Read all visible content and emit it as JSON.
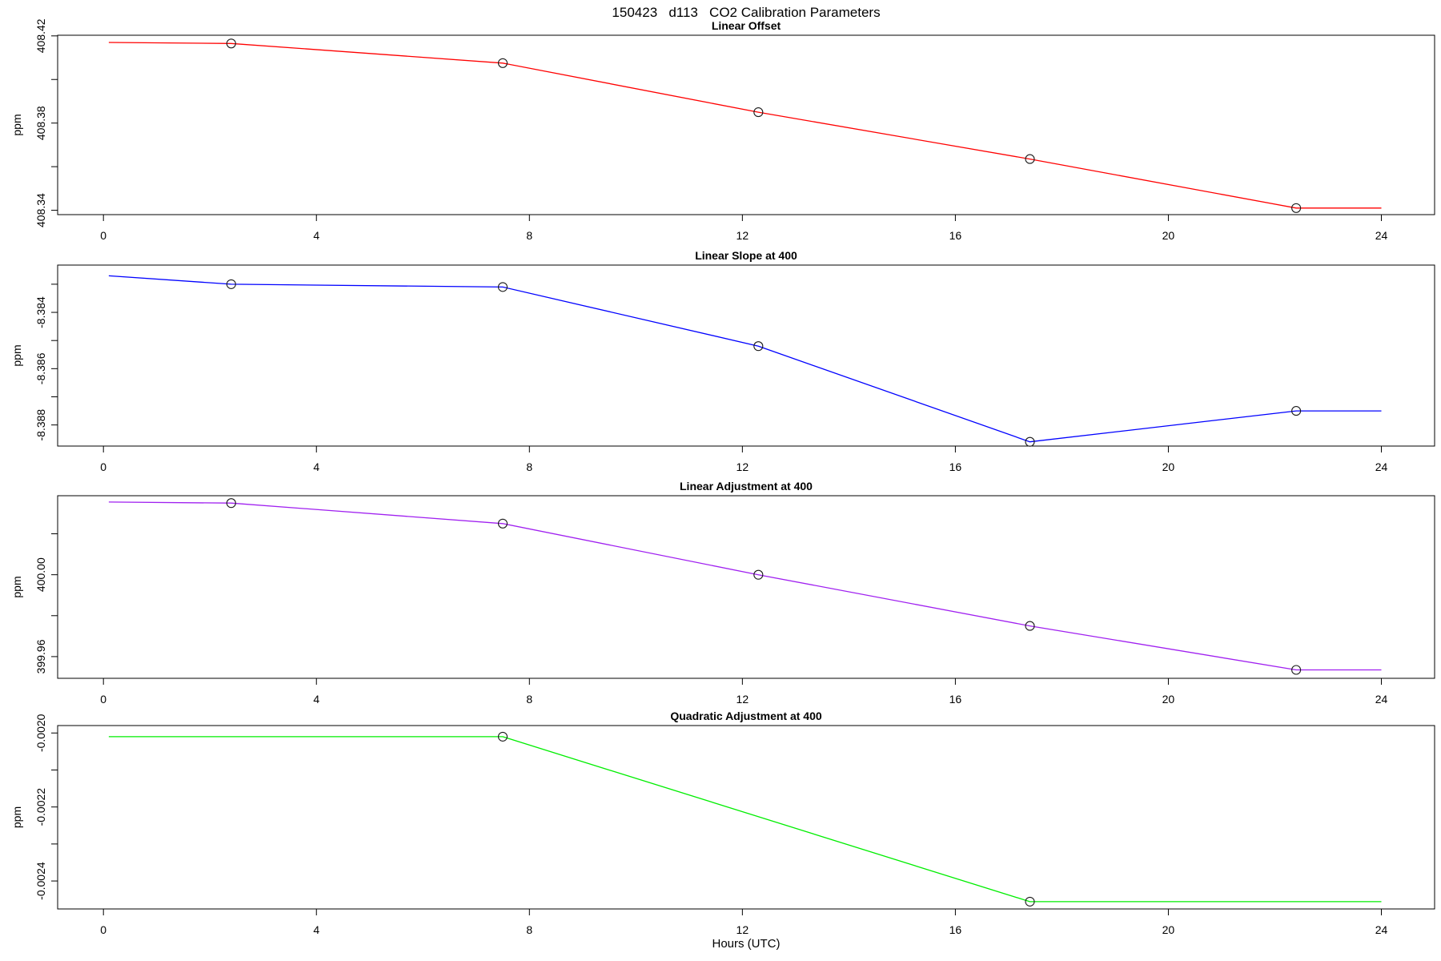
{
  "figure": {
    "title": "150423   d113   CO2 Calibration Parameters",
    "xlabel": "Hours (UTC)"
  },
  "x_axis": {
    "lim": [
      -0.86,
      25.0
    ],
    "ticks": [
      0,
      4,
      8,
      12,
      16,
      20,
      24
    ],
    "tick_labels": [
      "0",
      "4",
      "8",
      "12",
      "16",
      "20",
      "24"
    ],
    "label": "Hours (UTC)"
  },
  "chart_data": [
    {
      "type": "line",
      "title": "Linear Offset",
      "ylabel": "ppm",
      "color": "#FF0000",
      "x": [
        0.1,
        2.4,
        7.5,
        12.3,
        17.4,
        22.4,
        24.0
      ],
      "y": [
        408.417,
        408.4165,
        408.4075,
        408.385,
        408.3635,
        408.341,
        408.341
      ],
      "markers": {
        "x": [
          2.4,
          7.5,
          12.3,
          17.4,
          22.4
        ],
        "y": [
          408.4165,
          408.4075,
          408.385,
          408.3635,
          408.341
        ]
      },
      "ylim": [
        408.338,
        408.4203
      ],
      "yticks": [
        408.42,
        408.4,
        408.38,
        408.36,
        408.34
      ],
      "ytick_labels": [
        "408.42",
        "",
        "408.38",
        "",
        "408.34"
      ]
    },
    {
      "type": "line",
      "title": "Linear Slope at 400",
      "ylabel": "ppm",
      "color": "#0000FF",
      "x": [
        0.1,
        2.4,
        7.5,
        12.3,
        17.4,
        22.4,
        24.0
      ],
      "y": [
        -8.3827,
        -8.383,
        -8.3831,
        -8.3852,
        -8.3886,
        -8.3875,
        -8.3875
      ],
      "markers": {
        "x": [
          2.4,
          7.5,
          12.3,
          17.4,
          22.4
        ],
        "y": [
          -8.383,
          -8.3831,
          -8.3852,
          -8.3886,
          -8.3875
        ]
      },
      "ylim": [
        -8.38875,
        -8.38232
      ],
      "yticks": [
        -8.383,
        -8.384,
        -8.385,
        -8.386,
        -8.387,
        -8.388
      ],
      "ytick_labels": [
        "",
        "-8.384",
        "",
        "-8.386",
        "",
        "-8.388"
      ]
    },
    {
      "type": "line",
      "title": "Linear Adjustment at 400",
      "ylabel": "ppm",
      "color": "#A020F0",
      "x": [
        0.1,
        2.4,
        7.5,
        12.3,
        17.4,
        22.4,
        24.0
      ],
      "y": [
        400.0355,
        400.035,
        400.025,
        400.0,
        399.975,
        399.9535,
        399.9535
      ],
      "markers": {
        "x": [
          2.4,
          7.5,
          12.3,
          17.4,
          22.4
        ],
        "y": [
          400.035,
          400.025,
          400.0,
          399.975,
          399.9535
        ]
      },
      "ylim": [
        399.9494,
        400.0386
      ],
      "yticks": [
        400.02,
        400.0,
        399.98,
        399.96
      ],
      "ytick_labels": [
        "",
        "400.00",
        "",
        "399.96"
      ]
    },
    {
      "type": "line",
      "title": "Quadratic Adjustment at 400",
      "ylabel": "ppm",
      "color": "#00EE00",
      "x": [
        0.1,
        7.5,
        17.4,
        24.0
      ],
      "y": [
        -0.00201,
        -0.00201,
        -0.002456,
        -0.002456
      ],
      "markers": {
        "x": [
          7.5,
          17.4
        ],
        "y": [
          -0.00201,
          -0.002456
        ]
      },
      "ylim": [
        -0.0024756,
        -0.0019799
      ],
      "yticks": [
        -0.002,
        -0.0021,
        -0.0022,
        -0.0023,
        -0.0024
      ],
      "ytick_labels": [
        "-0.0020",
        "",
        "-0.0022",
        "",
        "-0.0024"
      ]
    }
  ]
}
